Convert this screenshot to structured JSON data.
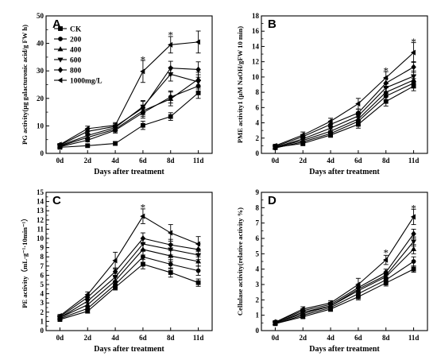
{
  "chart_data": [
    {
      "type": "line",
      "panel_label": "A",
      "title": "",
      "ylabel": "PG activity(μg galacturonic acid/g FW h)",
      "xlabel": "Days after treatment",
      "categories": [
        "0d",
        "2d",
        "4d",
        "6d",
        "8d",
        "11d"
      ],
      "ylim": [
        0,
        50
      ],
      "yticks": [
        "0",
        "10",
        "20",
        "30",
        "40",
        "50"
      ],
      "legend_position": "top-left",
      "series": [
        {
          "name": "CK",
          "marker": "square",
          "values": [
            2.2,
            2.8,
            3.6,
            10.2,
            13.4,
            22.0
          ],
          "errors": [
            0.4,
            0.5,
            0.7,
            1.5,
            1.4,
            2.0
          ]
        },
        {
          "name": "200",
          "marker": "circle",
          "values": [
            2.4,
            4.8,
            8.4,
            14.8,
            20.5,
            24.5
          ],
          "errors": [
            0.4,
            0.6,
            1.0,
            2.0,
            2.2,
            2.2
          ]
        },
        {
          "name": "400",
          "marker": "triangle-up",
          "values": [
            2.6,
            5.8,
            8.8,
            15.5,
            19.8,
            27.0
          ],
          "errors": [
            0.4,
            0.7,
            1.0,
            2.0,
            2.5,
            2.5
          ]
        },
        {
          "name": "600",
          "marker": "triangle-down",
          "values": [
            2.8,
            6.5,
            9.4,
            17.0,
            28.8,
            26.0
          ],
          "errors": [
            0.4,
            0.8,
            1.0,
            2.2,
            2.5,
            2.6
          ]
        },
        {
          "name": "800",
          "marker": "diamond",
          "values": [
            3.0,
            8.0,
            9.8,
            16.5,
            31.0,
            30.5
          ],
          "errors": [
            0.4,
            0.8,
            1.0,
            2.4,
            2.5,
            2.8
          ]
        },
        {
          "name": "1000mg/L",
          "marker": "triangle-left",
          "values": [
            3.2,
            9.0,
            10.2,
            29.8,
            39.5,
            40.5
          ],
          "errors": [
            0.4,
            0.9,
            1.0,
            4.0,
            3.0,
            4.0
          ]
        }
      ],
      "annotations": [
        {
          "text": "*",
          "category": "6d",
          "y": 34.5
        },
        {
          "text": "*",
          "category": "8d",
          "y": 43.5
        }
      ]
    },
    {
      "type": "line",
      "panel_label": "B",
      "title": "",
      "ylabel": "PME activity1 (μM NaOH/gFW 10 min)",
      "xlabel": "Days after treatment",
      "categories": [
        "0d",
        "2d",
        "4d",
        "6d",
        "8d",
        "11d"
      ],
      "ylim": [
        0,
        18
      ],
      "yticks": [
        "0",
        "2",
        "4",
        "6",
        "8",
        "10",
        "12",
        "14",
        "16",
        "18"
      ],
      "series": [
        {
          "name": "CK",
          "marker": "square",
          "values": [
            0.8,
            1.3,
            2.4,
            3.8,
            6.8,
            8.8
          ],
          "errors": [
            0.2,
            0.3,
            0.3,
            0.5,
            0.6,
            0.6
          ]
        },
        {
          "name": "200",
          "marker": "circle",
          "values": [
            0.7,
            1.5,
            2.6,
            4.2,
            7.5,
            9.2
          ],
          "errors": [
            0.2,
            0.3,
            0.3,
            0.5,
            0.6,
            0.6
          ]
        },
        {
          "name": "400",
          "marker": "triangle-up",
          "values": [
            0.8,
            1.7,
            2.9,
            4.5,
            8.0,
            9.6
          ],
          "errors": [
            0.2,
            0.3,
            0.3,
            0.5,
            0.6,
            0.6
          ]
        },
        {
          "name": "600",
          "marker": "triangle-down",
          "values": [
            0.8,
            1.9,
            3.3,
            4.9,
            8.6,
            10.1
          ],
          "errors": [
            0.2,
            0.3,
            0.3,
            0.5,
            0.6,
            0.7
          ]
        },
        {
          "name": "800",
          "marker": "diamond",
          "values": [
            0.9,
            2.2,
            3.8,
            5.3,
            9.2,
            11.3
          ],
          "errors": [
            0.2,
            0.3,
            0.3,
            0.5,
            0.6,
            0.7
          ]
        },
        {
          "name": "1000mg/L",
          "marker": "triangle-left",
          "values": [
            1.0,
            2.4,
            4.2,
            6.5,
            9.9,
            13.2
          ],
          "errors": [
            0.2,
            0.4,
            0.4,
            0.7,
            0.8,
            1.3
          ]
        }
      ],
      "annotations": [
        {
          "text": "*",
          "category": "8d",
          "y": 11.0
        },
        {
          "text": "*",
          "category": "11d",
          "y": 14.8
        }
      ]
    },
    {
      "type": "line",
      "panel_label": "C",
      "title": "",
      "ylabel": "PE activity（mL·g⁻¹·10min⁻¹）",
      "xlabel": "Days after treatment",
      "categories": [
        "0d",
        "2d",
        "4d",
        "6d",
        "8d",
        "11d"
      ],
      "ylim": [
        0,
        15
      ],
      "yticks": [
        "0",
        "1",
        "2",
        "3",
        "4",
        "5",
        "6",
        "7",
        "8",
        "9",
        "10",
        "11",
        "12",
        "13",
        "14",
        "15"
      ],
      "series": [
        {
          "name": "CK",
          "marker": "square",
          "values": [
            1.2,
            2.1,
            4.7,
            7.2,
            6.3,
            5.2
          ],
          "errors": [
            0.15,
            0.2,
            0.3,
            0.5,
            0.5,
            0.4
          ]
        },
        {
          "name": "200",
          "marker": "circle",
          "values": [
            1.3,
            2.4,
            5.0,
            8.0,
            7.2,
            6.5
          ],
          "errors": [
            0.15,
            0.2,
            0.3,
            0.6,
            0.5,
            0.5
          ]
        },
        {
          "name": "400",
          "marker": "triangle-up",
          "values": [
            1.4,
            2.8,
            5.4,
            8.8,
            8.1,
            7.5
          ],
          "errors": [
            0.15,
            0.2,
            0.4,
            0.6,
            0.6,
            0.5
          ]
        },
        {
          "name": "600",
          "marker": "triangle-down",
          "values": [
            1.4,
            3.2,
            5.8,
            9.4,
            8.8,
            8.2
          ],
          "errors": [
            0.15,
            0.2,
            0.4,
            0.6,
            0.6,
            0.5
          ]
        },
        {
          "name": "800",
          "marker": "diamond",
          "values": [
            1.5,
            3.6,
            6.4,
            10.0,
            9.3,
            8.8
          ],
          "errors": [
            0.15,
            0.3,
            0.4,
            0.6,
            0.6,
            0.6
          ]
        },
        {
          "name": "1000mg/L",
          "marker": "triangle-left",
          "values": [
            1.6,
            3.9,
            7.6,
            12.4,
            10.6,
            9.4
          ],
          "errors": [
            0.15,
            0.3,
            0.9,
            0.8,
            0.9,
            0.8
          ]
        }
      ],
      "annotations": [
        {
          "text": "*",
          "category": "6d",
          "y": 13.5
        }
      ]
    },
    {
      "type": "line",
      "panel_label": "D",
      "title": "",
      "ylabel": "Cellulase activity(relative activity %)",
      "xlabel": "Days after treatment",
      "categories": [
        "0d",
        "2d",
        "4d",
        "6d",
        "8d",
        "11d"
      ],
      "ylim": [
        0,
        9
      ],
      "yticks": [
        "0",
        "1",
        "2",
        "3",
        "4",
        "5",
        "6",
        "7",
        "8",
        "9"
      ],
      "series": [
        {
          "name": "CK",
          "marker": "square",
          "values": [
            0.45,
            0.9,
            1.4,
            2.2,
            3.1,
            4.0
          ],
          "errors": [
            0.1,
            0.1,
            0.15,
            0.2,
            0.2,
            0.2
          ]
        },
        {
          "name": "200",
          "marker": "circle",
          "values": [
            0.45,
            1.0,
            1.5,
            2.4,
            3.3,
            4.5
          ],
          "errors": [
            0.1,
            0.1,
            0.15,
            0.2,
            0.2,
            0.3
          ]
        },
        {
          "name": "400",
          "marker": "triangle-up",
          "values": [
            0.5,
            1.1,
            1.6,
            2.6,
            3.5,
            5.3
          ],
          "errors": [
            0.1,
            0.1,
            0.15,
            0.2,
            0.2,
            0.3
          ]
        },
        {
          "name": "600",
          "marker": "triangle-down",
          "values": [
            0.5,
            1.2,
            1.6,
            2.7,
            3.6,
            5.8
          ],
          "errors": [
            0.1,
            0.1,
            0.15,
            0.2,
            0.2,
            0.3
          ]
        },
        {
          "name": "800",
          "marker": "diamond",
          "values": [
            0.55,
            1.3,
            1.7,
            2.8,
            3.8,
            6.3
          ],
          "errors": [
            0.1,
            0.1,
            0.15,
            0.2,
            0.2,
            0.3
          ]
        },
        {
          "name": "1000mg/L",
          "marker": "triangle-left",
          "values": [
            0.55,
            1.4,
            1.8,
            3.0,
            4.6,
            7.4
          ],
          "errors": [
            0.1,
            0.15,
            0.15,
            0.4,
            0.3,
            0.5
          ]
        }
      ],
      "annotations": [
        {
          "text": "*",
          "category": "8d",
          "y": 5.15
        },
        {
          "text": "*",
          "category": "11d",
          "y": 8.05
        }
      ]
    }
  ]
}
